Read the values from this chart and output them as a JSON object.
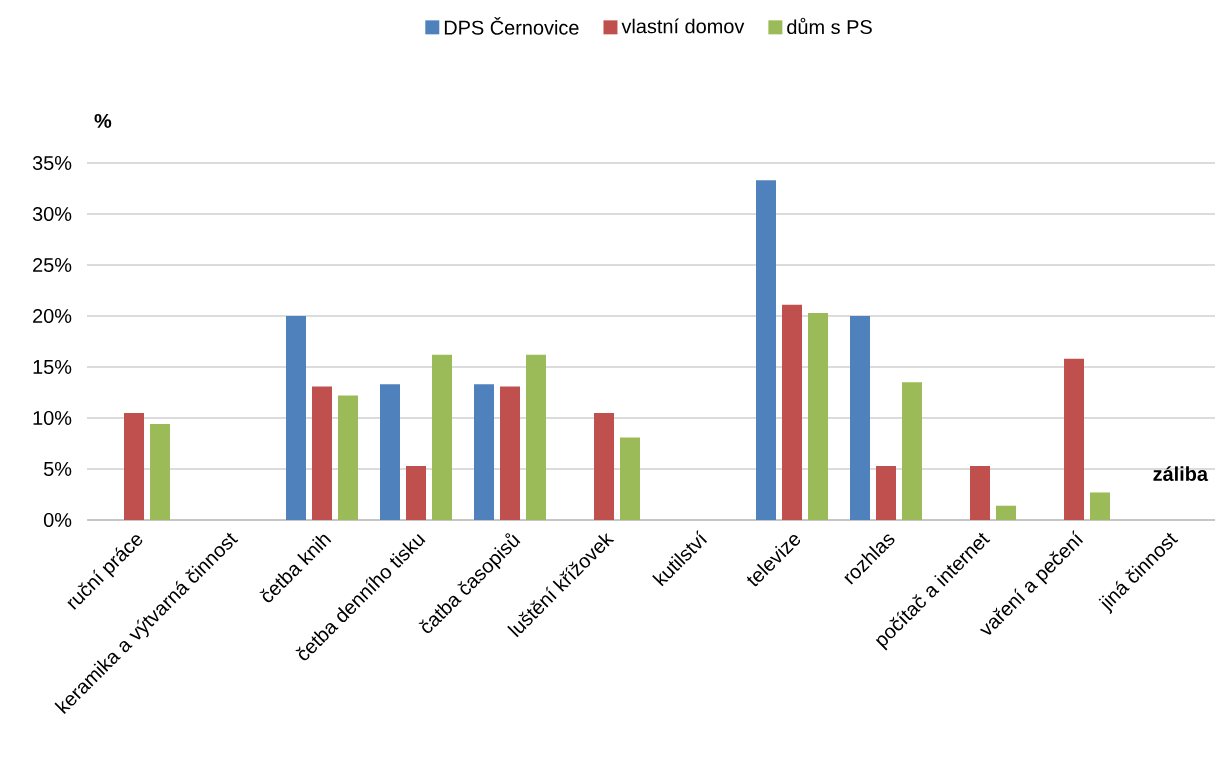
{
  "chart_data": {
    "type": "bar",
    "ylabel": "%",
    "xlabel": "záliba",
    "categories": [
      "ruční práce",
      "keramika a výtvarná činnost",
      "četba knih",
      "četba denního tisku",
      "čatba časopisů",
      "luštění křížovek",
      "kutilství",
      "televize",
      "rozhlas",
      "počítač a internet",
      "vaření a pečení",
      "jiná činnost"
    ],
    "series": [
      {
        "name": "DPS Černovice",
        "color": "#4f81bd",
        "values": [
          0,
          0,
          20,
          13.3,
          13.3,
          0,
          0,
          33.3,
          20,
          0,
          0,
          0
        ]
      },
      {
        "name": "vlastní domov",
        "color": "#c0504d",
        "values": [
          10.5,
          0,
          13.1,
          5.3,
          13.1,
          10.5,
          0,
          21.1,
          5.3,
          5.3,
          15.8,
          0
        ]
      },
      {
        "name": "dům s PS",
        "color": "#9bbb59",
        "values": [
          9.4,
          0,
          12.2,
          16.2,
          16.2,
          8.1,
          0,
          20.3,
          13.5,
          1.4,
          2.7,
          0
        ]
      }
    ],
    "ylim": [
      0,
      35
    ],
    "yticks": [
      {
        "value": 0,
        "label": "0%"
      },
      {
        "value": 5,
        "label": "5%"
      },
      {
        "value": 10,
        "label": "10%"
      },
      {
        "value": 15,
        "label": "15%"
      },
      {
        "value": 20,
        "label": "20%"
      },
      {
        "value": 25,
        "label": "25%"
      },
      {
        "value": 30,
        "label": "30%"
      },
      {
        "value": 35,
        "label": "35%"
      }
    ],
    "grid": "y",
    "legend": "top"
  }
}
